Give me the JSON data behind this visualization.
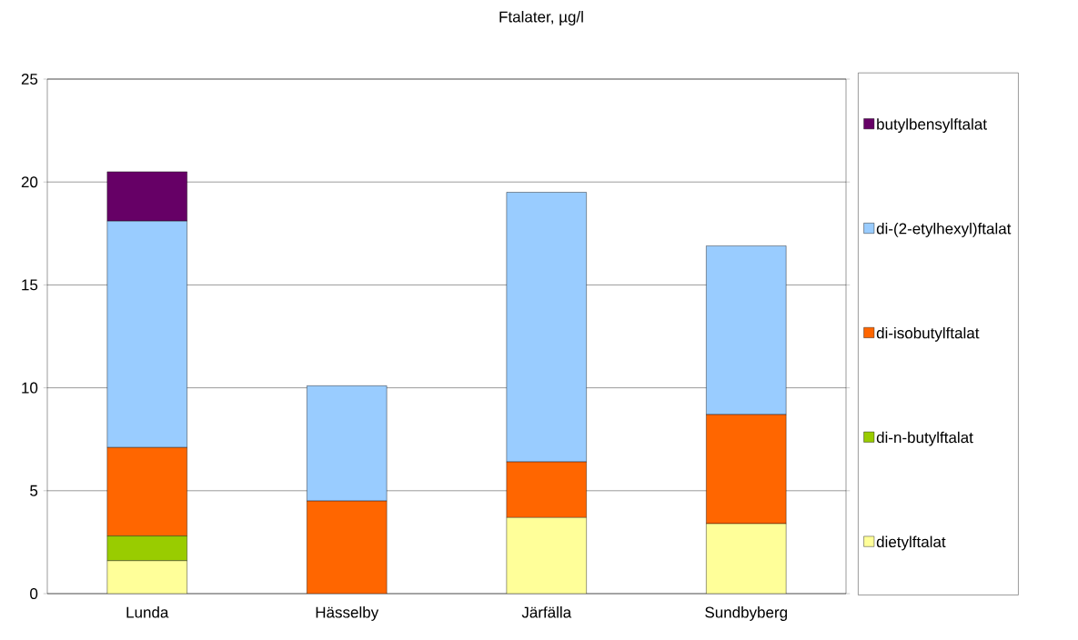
{
  "chart_data": {
    "type": "bar",
    "title": "Ftalater, µg/l",
    "stacked": true,
    "categories": [
      "Lunda",
      "Hässelby",
      "Järfälla",
      "Sundbyberg"
    ],
    "series": [
      {
        "name": "dietylftalat",
        "color": "#ffff99",
        "values": [
          1.6,
          0,
          3.7,
          3.4
        ]
      },
      {
        "name": "di-n-butylftalat",
        "color": "#99cc00",
        "values": [
          1.2,
          0,
          0,
          0
        ]
      },
      {
        "name": "di-isobutylftalat",
        "color": "#ff6600",
        "values": [
          4.3,
          4.5,
          2.7,
          5.3
        ]
      },
      {
        "name": "di-(2-etylhexyl)ftalat",
        "color": "#99ccff",
        "values": [
          11.0,
          5.6,
          13.1,
          8.2
        ]
      },
      {
        "name": "butylbensylftalat",
        "color": "#660066",
        "values": [
          2.4,
          0,
          0,
          0
        ]
      }
    ],
    "ylim": [
      0,
      25
    ],
    "yticks": [
      0,
      5,
      10,
      15,
      20,
      25
    ],
    "grid": "y",
    "legend": "right"
  }
}
